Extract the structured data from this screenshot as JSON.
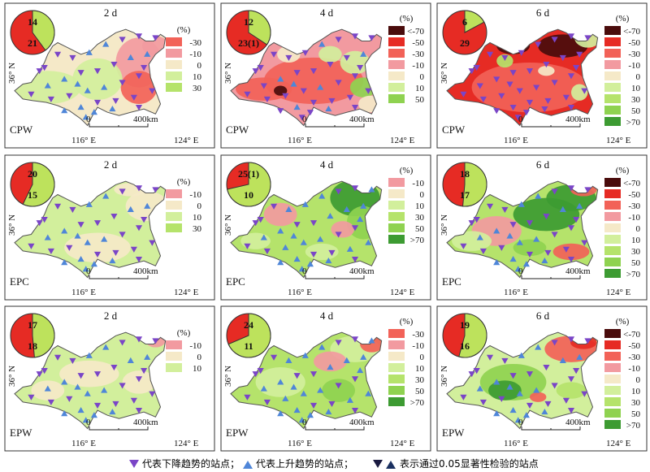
{
  "chart_data": {
    "type": "map-grid",
    "rows": [
      "CPW",
      "EPC",
      "EPW"
    ],
    "columns": [
      "2 d",
      "4 d",
      "6 d"
    ],
    "axis_labels": {
      "lat": "36° N",
      "lon_left": "116° E",
      "lon_right": "124° E"
    },
    "scale_bar": {
      "start": "0",
      "end": "400km"
    },
    "unit": "(%)",
    "colors": {
      "<-70": "#4a0c0c",
      "-70": "#a3241d",
      "-50": "#e62b24",
      "-30": "#f26258",
      "-10": "#f29aa0",
      "0": "#f5e9c8",
      "10": "#d2ef9c",
      "30": "#b5e36b",
      "50": "#8fd250",
      ">70": "#3d9b32",
      "down_marker": "#7a45c7",
      "up_marker": "#4f86d8",
      "pie_up": "#bde25c",
      "pie_down": "#e62b24"
    },
    "panels": [
      {
        "id": "CPW-2d",
        "column": "2 d",
        "row": "CPW",
        "pie_up": "14",
        "pie_down": "21",
        "up_count": 14,
        "down_count": 21,
        "legend": [
          "-30",
          "-10",
          "0",
          "10",
          "30"
        ]
      },
      {
        "id": "CPW-4d",
        "column": "4 d",
        "row": "CPW",
        "pie_up": "12",
        "pie_down": "23(1)",
        "up_count": 12,
        "down_count": 23,
        "legend": [
          "<-70",
          "-50",
          "-30",
          "-10",
          "0",
          "10",
          "50"
        ]
      },
      {
        "id": "CPW-6d",
        "column": "6 d",
        "row": "CPW",
        "pie_up": "6",
        "pie_down": "29",
        "up_count": 6,
        "down_count": 29,
        "legend": [
          "<-70",
          "-50",
          "-30",
          "-10",
          "0",
          "10",
          "30",
          "50",
          ">70"
        ]
      },
      {
        "id": "EPC-2d",
        "column": "2 d",
        "row": "EPC",
        "pie_up": "20",
        "pie_down": "15",
        "up_count": 20,
        "down_count": 15,
        "legend": [
          "-10",
          "0",
          "10",
          "30"
        ]
      },
      {
        "id": "EPC-4d",
        "column": "4 d",
        "row": "EPC",
        "pie_up": "25(1)",
        "pie_down": "10",
        "up_count": 25,
        "down_count": 10,
        "legend": [
          "-10",
          "0",
          "10",
          "30",
          "50",
          ">70"
        ]
      },
      {
        "id": "EPC-6d",
        "column": "6 d",
        "row": "EPC",
        "pie_up": "18",
        "pie_down": "17",
        "up_count": 18,
        "down_count": 17,
        "legend": [
          "<-70",
          "-50",
          "-30",
          "-10",
          "0",
          "10",
          "30",
          "50",
          ">70"
        ]
      },
      {
        "id": "EPW-2d",
        "column": "2 d",
        "row": "EPW",
        "pie_up": "17",
        "pie_down": "18",
        "up_count": 17,
        "down_count": 18,
        "legend": [
          "-10",
          "0",
          "10"
        ]
      },
      {
        "id": "EPW-4d",
        "column": "4 d",
        "row": "EPW",
        "pie_up": "24",
        "pie_down": "11",
        "up_count": 24,
        "down_count": 11,
        "legend": [
          "-30",
          "-10",
          "0",
          "10",
          "30",
          "50",
          ">70"
        ]
      },
      {
        "id": "EPW-6d",
        "column": "6 d",
        "row": "EPW",
        "pie_up": "19",
        "pie_down": "16",
        "up_count": 19,
        "down_count": 16,
        "legend": [
          "<-70",
          "-50",
          "-30",
          "-10",
          "0",
          "10",
          "30",
          "50",
          ">70"
        ]
      }
    ],
    "bottom_legend": {
      "down": "代表下降趋势的站点；",
      "up": "代表上升趋势的站点；",
      "significant": "表示通过0.05显著性检验的站点"
    }
  }
}
